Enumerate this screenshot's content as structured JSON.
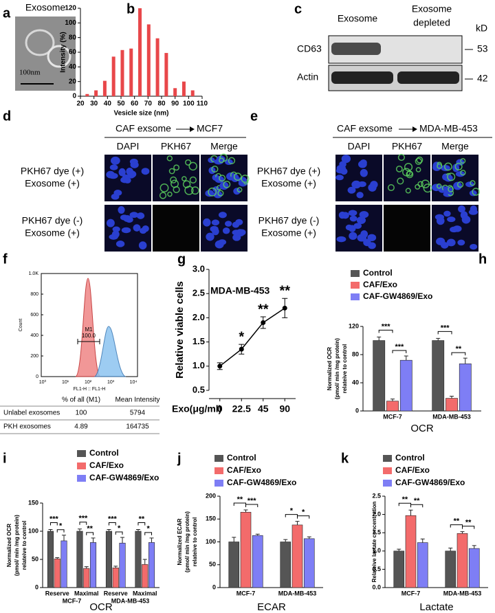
{
  "panel_a": {
    "panel": "a",
    "title": "Exosome",
    "scale_bar": "100nm"
  },
  "panel_c": {
    "panel": "c",
    "columns": [
      [
        "Exosome"
      ],
      [
        "Exosome",
        "depleted"
      ]
    ],
    "rows": [
      "CD63",
      "Actin"
    ],
    "unit": "kD",
    "markers": [
      53,
      42
    ]
  },
  "panel_d": {
    "panel": "d",
    "source": "CAF exsome",
    "target": "MCF7",
    "columns": [
      "DAPI",
      "PKH67",
      "Merge"
    ],
    "rows": [
      [
        "PKH67 dye (+)",
        "Exosome (+)"
      ],
      [
        "PKH67 dye (-)",
        "Exosome (+)"
      ]
    ]
  },
  "panel_e": {
    "panel": "e",
    "source": "CAF exsome",
    "target": "MDA-MB-453",
    "columns": [
      "DAPI",
      "PKH67",
      "Merge"
    ],
    "rows": [
      [
        "PKH67 dye (+)",
        "Exosome (+)"
      ],
      [
        "PKH67 dye (-)",
        "Exosome (+)"
      ]
    ]
  },
  "panel_f": {
    "panel": "f",
    "yticks": [
      "1.0K",
      800,
      600,
      400,
      200,
      0
    ],
    "ylabel": "Count",
    "xticks": [
      "10⁰",
      "10¹",
      "10²",
      "10³",
      "10⁴"
    ],
    "xlabel": "FL1-H :: FL1-H",
    "gate": "M1",
    "gate_value": "100.0",
    "table": {
      "header": [
        "% of all (M1)",
        "Mean Intensity"
      ],
      "rows": [
        [
          "Unlabel exosomes",
          100,
          5794
        ],
        [
          "PKH exosomes",
          4.89,
          164735
        ]
      ]
    }
  },
  "chart_data": [
    {
      "panel": "b",
      "type": "bar",
      "xlabel": "Vesicle size (nm)",
      "ylabel": "Intensity (%)",
      "color": "#e8474a",
      "x": [
        25,
        31.5,
        38,
        44.5,
        51,
        57.5,
        64,
        70.5,
        77,
        83.5,
        90,
        96.5,
        103
      ],
      "values": [
        3,
        8,
        21,
        54,
        63,
        65,
        120,
        98,
        79,
        59,
        11,
        20,
        8
      ],
      "xlim": [
        20,
        110
      ],
      "xticks": [
        20,
        30,
        40,
        50,
        60,
        70,
        80,
        90,
        100,
        110
      ],
      "ylim": [
        0,
        120
      ],
      "yticks": [
        0,
        20,
        40,
        60,
        80,
        100,
        120
      ]
    },
    {
      "panel": "g",
      "type": "line",
      "title": "MDA-MB-453",
      "xlabel": "Exo(μg/ml)",
      "ylabel": "Relative viable cells",
      "color": "#000000",
      "categories": [
        0,
        22.5,
        45,
        90
      ],
      "values": [
        1.0,
        1.35,
        1.9,
        2.2
      ],
      "errors": [
        0.07,
        0.1,
        0.12,
        0.2
      ],
      "annotations": [
        null,
        "*",
        "**",
        "**"
      ],
      "ylim": [
        0.5,
        3.0
      ],
      "yticks": [
        0.5,
        {
          "value": 1,
          "label": "1.0"
        },
        1.5,
        {
          "value": 2,
          "label": "2.0"
        },
        2.5,
        {
          "value": 3,
          "label": "3.0"
        }
      ]
    },
    {
      "panel": "h",
      "type": "bar",
      "xlabel": "OCR",
      "ylabel": [
        "Normalized OCR",
        "(pmol/ min /mg protein)",
        "relateive to control"
      ],
      "categories": [
        "MCF-7",
        "MDA-MB-453"
      ],
      "series": [
        {
          "name": "Control",
          "color": "#555555",
          "values": [
            100,
            100
          ],
          "errors": [
            5,
            3
          ]
        },
        {
          "name": "CAF/Exo",
          "color": "#f36b6b",
          "values": [
            14,
            18
          ],
          "errors": [
            3,
            3
          ]
        },
        {
          "name": "CAF-GW4869/Exo",
          "color": "#7e7ef5",
          "values": [
            72,
            67
          ],
          "errors": [
            6,
            8
          ]
        }
      ],
      "significance": [
        [
          "***",
          "***"
        ],
        [
          "***",
          "**"
        ]
      ],
      "ylim": [
        0,
        120
      ],
      "yticks": [
        0,
        40,
        80,
        120
      ]
    },
    {
      "panel": "i",
      "type": "bar",
      "xlabel": "OCR",
      "ylabel": [
        "Normalized OCR",
        "(pmol/ min /mg protein)",
        "relateive to control"
      ],
      "categories": [
        "Reserve",
        "Maximal",
        "Reserve",
        "Maximal"
      ],
      "groups": [
        "MCF-7",
        "MDA-MB-453"
      ],
      "series": [
        {
          "name": "Control",
          "color": "#555555",
          "values": [
            100,
            100,
            100,
            100
          ],
          "errors": [
            3,
            4,
            3,
            3
          ]
        },
        {
          "name": "CAF/Exo",
          "color": "#f36b6b",
          "values": [
            51,
            34,
            35,
            41
          ],
          "errors": [
            2,
            3,
            3,
            9
          ]
        },
        {
          "name": "CAF-GW4869/Exo",
          "color": "#7e7ef5",
          "values": [
            83,
            80,
            79,
            80
          ],
          "errors": [
            10,
            8,
            10,
            8
          ]
        }
      ],
      "significance": [
        [
          "***",
          "*"
        ],
        [
          "***",
          "**"
        ],
        [
          "***",
          "*"
        ],
        [
          "**",
          "*"
        ]
      ],
      "ylim": [
        0,
        150
      ],
      "yticks": [
        0,
        50,
        100,
        150
      ]
    },
    {
      "panel": "j",
      "type": "bar",
      "xlabel": "ECAR",
      "ylabel": [
        "Normalized ECAR",
        "(pmol/ min /mg protein)",
        "relateive to control"
      ],
      "categories": [
        "MCF-7",
        "MDA-MB-453"
      ],
      "series": [
        {
          "name": "Control",
          "color": "#555555",
          "values": [
            100,
            100
          ],
          "errors": [
            10,
            5
          ]
        },
        {
          "name": "CAF/Exo",
          "color": "#f36b6b",
          "values": [
            165,
            137
          ],
          "errors": [
            5,
            8
          ]
        },
        {
          "name": "CAF-GW4869/Exo",
          "color": "#7e7ef5",
          "values": [
            114,
            107
          ],
          "errors": [
            3,
            4
          ]
        }
      ],
      "significance": [
        [
          "**",
          "***"
        ],
        [
          "*",
          "*"
        ]
      ],
      "ylim": [
        0,
        200
      ],
      "yticks": [
        0,
        50,
        100,
        150,
        200
      ]
    },
    {
      "panel": "k",
      "type": "bar",
      "xlabel": "Lactate",
      "ylabel": [
        "Relateive lactate concentration"
      ],
      "categories": [
        "MCF-7",
        "MDA-MB-453"
      ],
      "series": [
        {
          "name": "Control",
          "color": "#555555",
          "values": [
            1.0,
            1.0
          ],
          "errors": [
            0.05,
            0.08
          ]
        },
        {
          "name": "CAF/Exo",
          "color": "#f36b6b",
          "values": [
            1.97,
            1.48
          ],
          "errors": [
            0.15,
            0.05
          ]
        },
        {
          "name": "CAF-GW4869/Exo",
          "color": "#7e7ef5",
          "values": [
            1.23,
            1.07
          ],
          "errors": [
            0.1,
            0.08
          ]
        }
      ],
      "significance": [
        [
          "**",
          "**"
        ],
        [
          "**",
          "**"
        ]
      ],
      "ylim": [
        0,
        2.5
      ],
      "yticks": [
        {
          "value": 0,
          "label": "0.0"
        },
        0.5,
        {
          "value": 1,
          "label": "1.0"
        },
        1.5,
        {
          "value": 2,
          "label": "2.0"
        },
        2.5
      ]
    }
  ]
}
